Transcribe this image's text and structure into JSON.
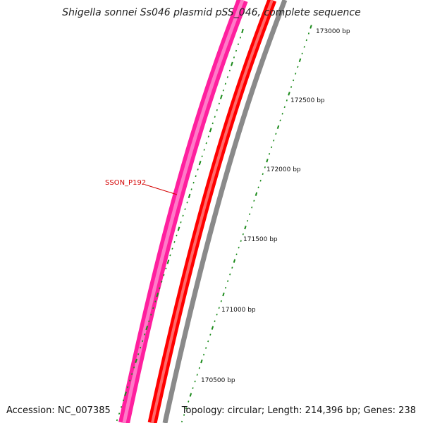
{
  "title": "Shigella sonnei Ss046 plasmid pSS_046, complete sequence",
  "accession": "Accession: NC_007385",
  "summary": "Topology: circular; Length: 214,396 bp; Genes: 238",
  "gene_label": "SSON_P192",
  "tick_labels": [
    "173000 bp",
    "172500 bp",
    "172000 bp",
    "171500 bp",
    "171000 bp",
    "170500 bp"
  ],
  "colors": {
    "outer_gene_strand": "#ff1f9e",
    "outer_gene_highlight": "#ff7ac8",
    "inner_gene_strand": "#ff0000",
    "inner_gene_highlight": "#ff6a6a",
    "backbone": "#8a8a8a",
    "ticks": "#1a8a1a",
    "gene_label": "#d40000"
  }
}
